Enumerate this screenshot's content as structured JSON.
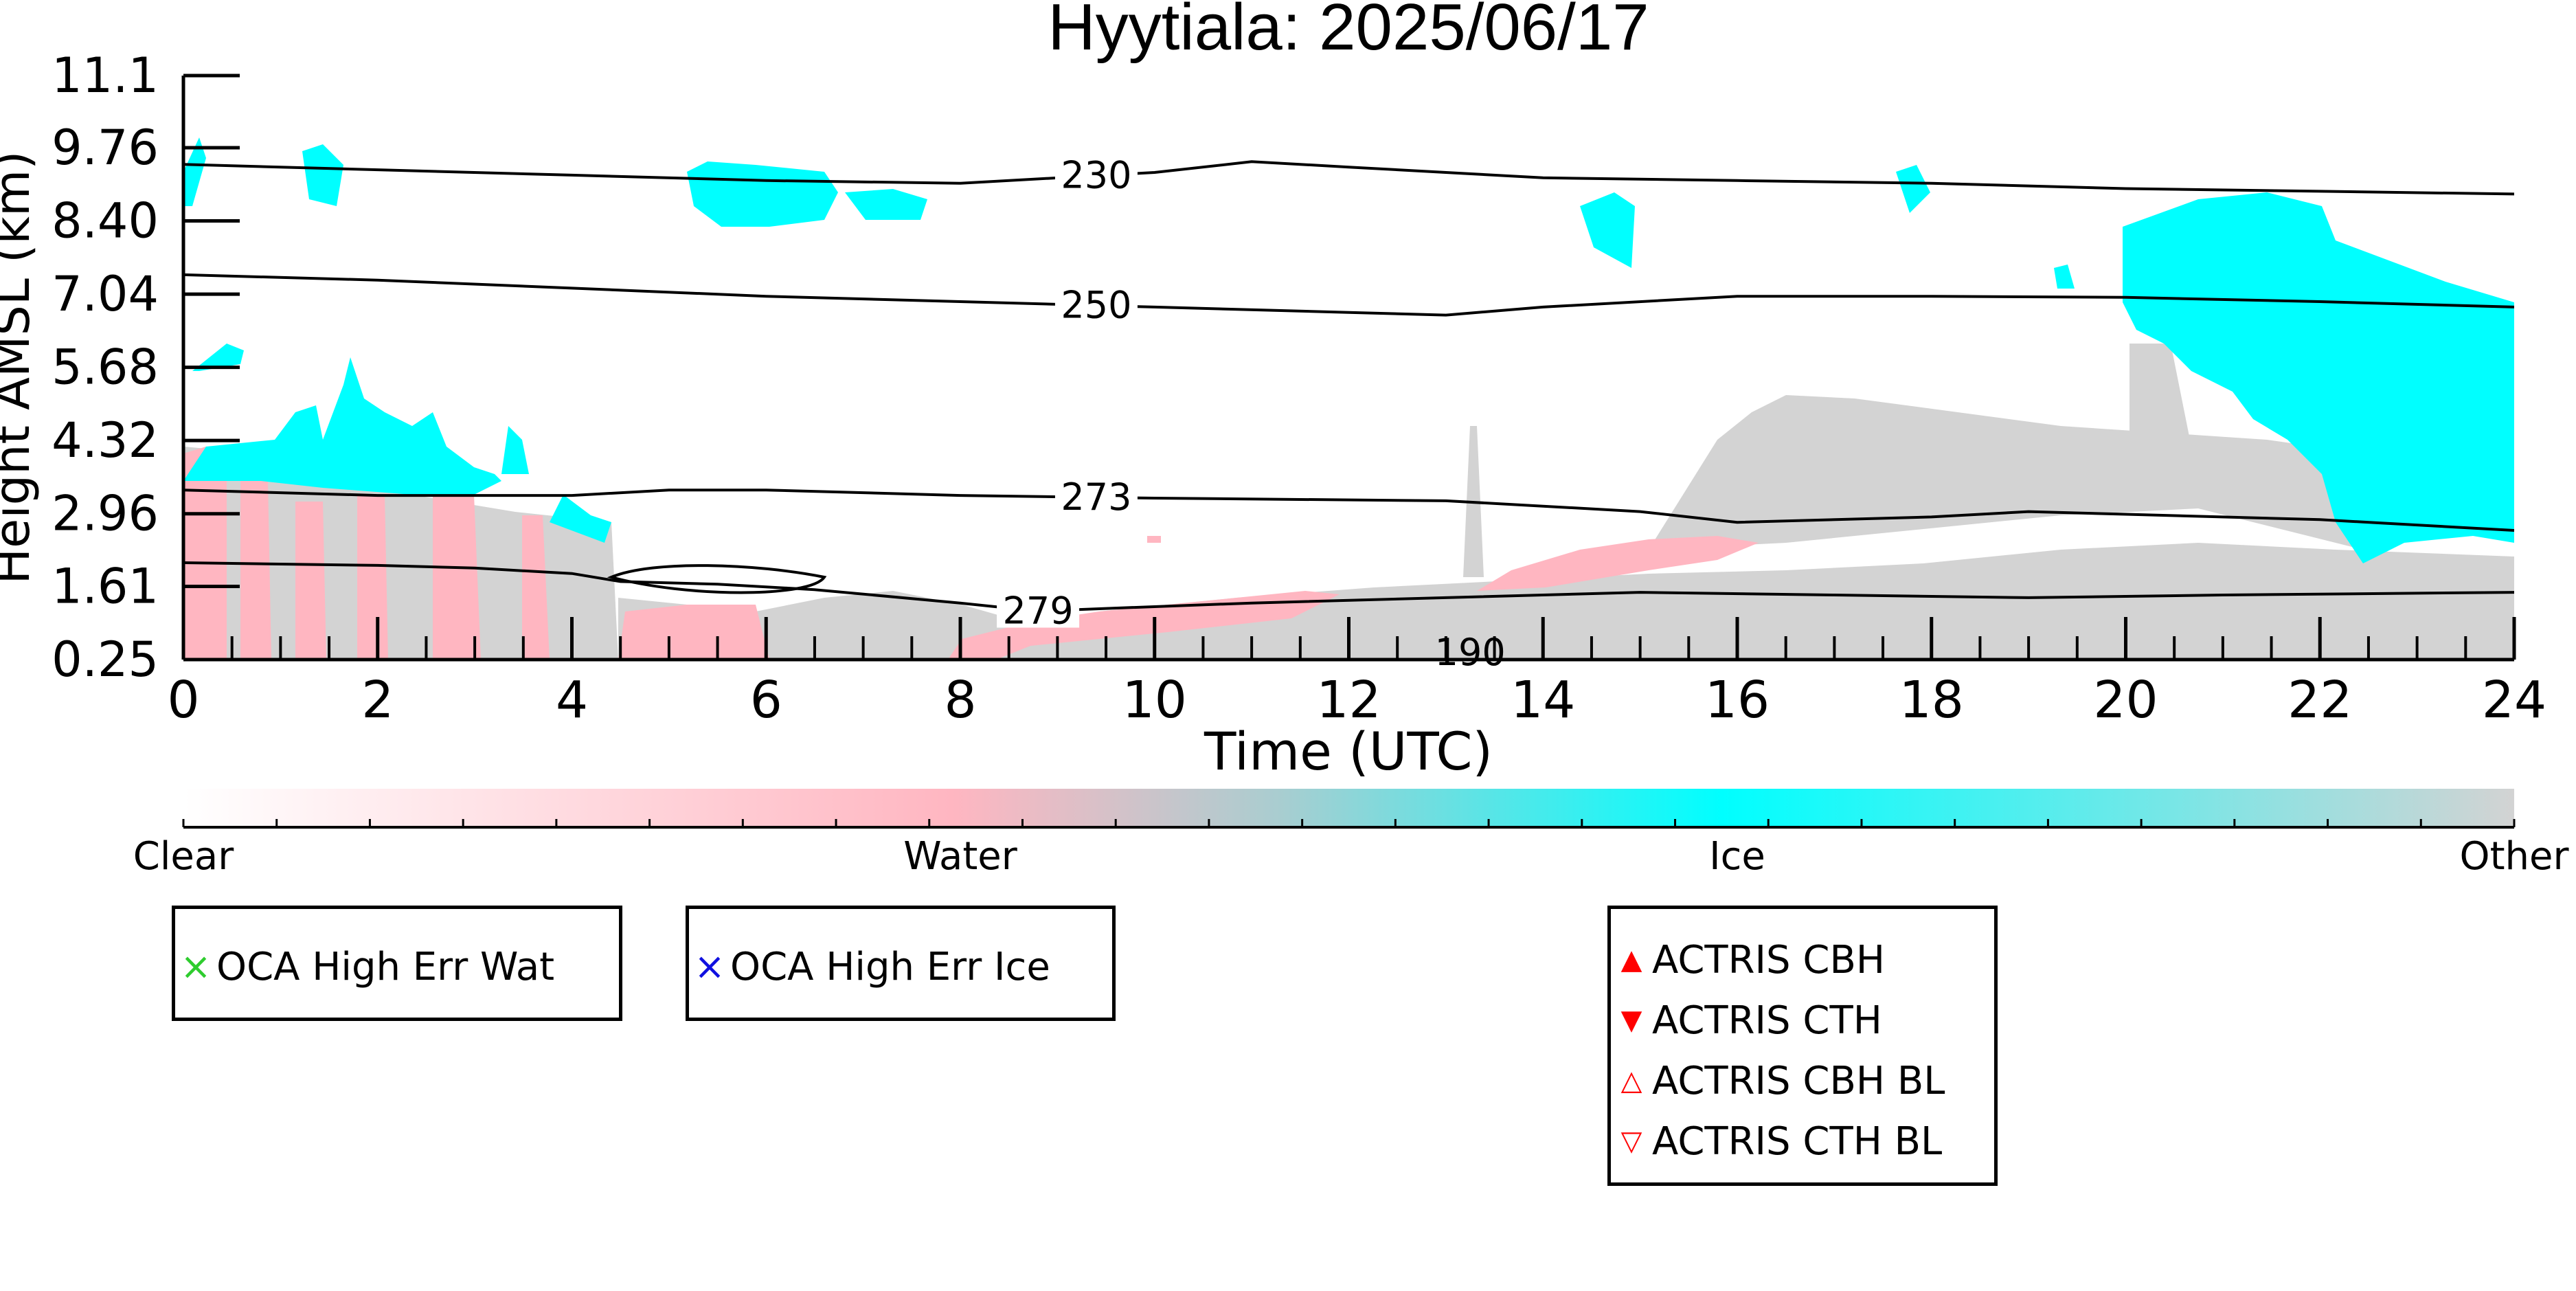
{
  "chart_data": {
    "type": "heatmap",
    "title": "Hyytiala: 2025/06/17",
    "xlabel": "Time (UTC)",
    "ylabel": "Height AMSL (km)",
    "xlim": [
      0,
      24
    ],
    "ylim": [
      0.25,
      11.1
    ],
    "x_ticks": [
      "0",
      "2",
      "4",
      "6",
      "8",
      "10",
      "12",
      "14",
      "16",
      "18",
      "20",
      "22",
      "24"
    ],
    "y_ticks": [
      "0.25",
      "1.61",
      "2.96",
      "4.32",
      "5.68",
      "7.04",
      "8.40",
      "9.76",
      "11.1"
    ],
    "y_tick_values": [
      0.25,
      1.61,
      2.96,
      4.32,
      5.68,
      7.04,
      8.4,
      9.76,
      11.1
    ],
    "classes": [
      {
        "name": "Clear",
        "color": "#ffffff"
      },
      {
        "name": "Water",
        "color": "#ffb6c1"
      },
      {
        "name": "Ice",
        "color": "#00ffff"
      },
      {
        "name": "Other",
        "color": "#d3d3d3"
      }
    ],
    "colorbar": {
      "labels": [
        "Clear",
        "Water",
        "Ice",
        "Other"
      ]
    },
    "contours": [
      {
        "label": "230",
        "label_x": 9.4,
        "points": [
          [
            0,
            9.45
          ],
          [
            2,
            9.35
          ],
          [
            4,
            9.25
          ],
          [
            6,
            9.15
          ],
          [
            8,
            9.1
          ],
          [
            10,
            9.3
          ],
          [
            11,
            9.5
          ],
          [
            12,
            9.4
          ],
          [
            14,
            9.2
          ],
          [
            16,
            9.15
          ],
          [
            18,
            9.1
          ],
          [
            20,
            9.0
          ],
          [
            22,
            8.95
          ],
          [
            24,
            8.9
          ]
        ]
      },
      {
        "label": "250",
        "label_x": 9.4,
        "points": [
          [
            0,
            7.4
          ],
          [
            2,
            7.3
          ],
          [
            4,
            7.15
          ],
          [
            6,
            7.0
          ],
          [
            8,
            6.9
          ],
          [
            10,
            6.8
          ],
          [
            12,
            6.7
          ],
          [
            13,
            6.65
          ],
          [
            14,
            6.8
          ],
          [
            16,
            7.0
          ],
          [
            18,
            7.0
          ],
          [
            20,
            6.98
          ],
          [
            22,
            6.9
          ],
          [
            24,
            6.8
          ]
        ]
      },
      {
        "label": "273",
        "label_x": 9.4,
        "points": [
          [
            0,
            3.4
          ],
          [
            2,
            3.3
          ],
          [
            4,
            3.3
          ],
          [
            5,
            3.4
          ],
          [
            6,
            3.4
          ],
          [
            8,
            3.3
          ],
          [
            10,
            3.25
          ],
          [
            13,
            3.2
          ],
          [
            14,
            3.1
          ],
          [
            15,
            3.0
          ],
          [
            16,
            2.8
          ],
          [
            18,
            2.9
          ],
          [
            19,
            3.0
          ],
          [
            20,
            2.95
          ],
          [
            22,
            2.85
          ],
          [
            24,
            2.65
          ]
        ]
      },
      {
        "label": "279",
        "label_x": 8.8,
        "points": [
          [
            0,
            2.05
          ],
          [
            2,
            2.0
          ],
          [
            3,
            1.95
          ],
          [
            4,
            1.85
          ],
          [
            4.5,
            1.7
          ],
          [
            5.5,
            1.65
          ],
          [
            6.5,
            1.55
          ],
          [
            8,
            1.3
          ],
          [
            8.8,
            1.15
          ],
          [
            9.5,
            1.2
          ],
          [
            11,
            1.3
          ],
          [
            13,
            1.4
          ],
          [
            15,
            1.5
          ],
          [
            17,
            1.45
          ],
          [
            19,
            1.4
          ],
          [
            21,
            1.45
          ],
          [
            24,
            1.5
          ]
        ]
      }
    ],
    "inner_contour_label": "190",
    "legends": {
      "oca": [
        {
          "label": "OCA High Err Wat",
          "symbol": "×",
          "color": "#2ecc2e"
        },
        {
          "label": "OCA High Err Ice",
          "symbol": "×",
          "color": "#1010e0"
        }
      ],
      "actris": [
        {
          "label": "ACTRIS CBH",
          "symbol": "▲",
          "color": "#ff0000"
        },
        {
          "label": "ACTRIS CTH",
          "symbol": "▼",
          "color": "#ff0000"
        },
        {
          "label": "ACTRIS CBH BL",
          "symbol": "△",
          "color": "#ff0000"
        },
        {
          "label": "ACTRIS CTH BL",
          "symbol": "▽",
          "color": "#ff0000"
        }
      ]
    }
  }
}
